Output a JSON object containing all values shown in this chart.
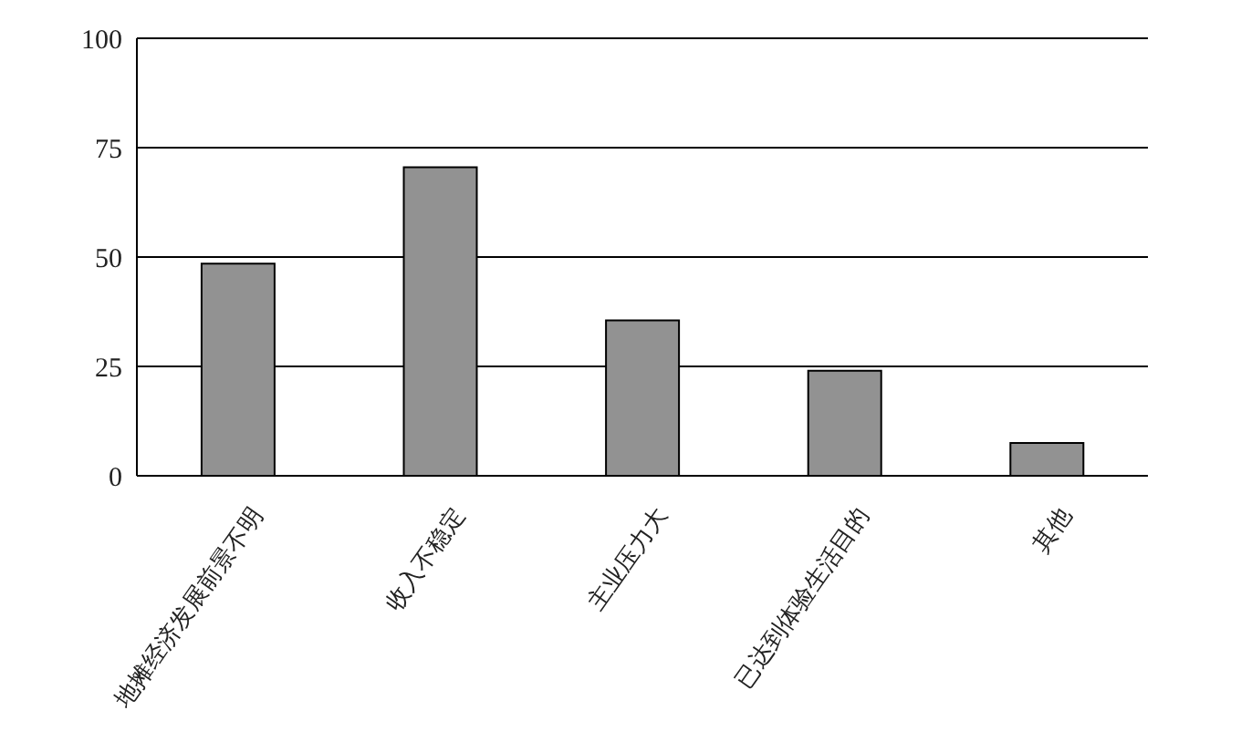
{
  "chart_data": {
    "type": "bar",
    "categories": [
      "地摊经济发展前景不明",
      "收入不稳定",
      "主业压力大",
      "已达到体验生活目的",
      "其他"
    ],
    "values": [
      48.5,
      70.5,
      35.5,
      24,
      7.5
    ],
    "color": "#929292",
    "ylim": [
      0,
      100
    ],
    "yticks": [
      0,
      25,
      50,
      75,
      100
    ],
    "grid": "y"
  }
}
